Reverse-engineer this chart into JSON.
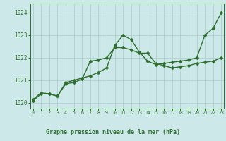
{
  "line1_x": [
    0,
    1,
    2,
    3,
    4,
    5,
    6,
    7,
    8,
    9,
    10,
    11,
    12,
    13,
    14,
    15,
    16,
    17,
    18,
    19,
    20,
    21,
    22,
    23
  ],
  "line1_y": [
    1020.1,
    1020.4,
    1020.4,
    1020.3,
    1020.85,
    1020.9,
    1021.05,
    1021.85,
    1021.9,
    1022.0,
    1022.45,
    1022.45,
    1022.35,
    1022.2,
    1022.2,
    1021.75,
    1021.65,
    1021.55,
    1021.6,
    1021.65,
    1021.75,
    1021.8,
    1021.85,
    1022.0
  ],
  "line2_x": [
    0,
    1,
    2,
    3,
    4,
    5,
    6,
    7,
    8,
    9,
    10,
    11,
    12,
    13,
    14,
    15,
    16,
    17,
    18,
    19,
    20,
    21,
    22,
    23
  ],
  "line2_y": [
    1020.15,
    1020.45,
    1020.4,
    1020.3,
    1020.9,
    1021.0,
    1021.1,
    1021.2,
    1021.35,
    1021.55,
    1022.55,
    1023.0,
    1022.8,
    1022.25,
    1021.85,
    1021.7,
    1021.75,
    1021.8,
    1021.85,
    1021.9,
    1022.0,
    1023.0,
    1023.3,
    1024.0
  ],
  "line_color": "#2d6e2d",
  "marker": "D",
  "marker_size": 2.5,
  "bg_color": "#cce8e8",
  "grid_color": "#aacccc",
  "xlabel_bg": "#99cc99",
  "xlim": [
    -0.3,
    23.3
  ],
  "ylim": [
    1019.75,
    1024.4
  ],
  "yticks": [
    1020,
    1021,
    1022,
    1023,
    1024
  ],
  "xticks": [
    0,
    1,
    2,
    3,
    4,
    5,
    6,
    7,
    8,
    9,
    10,
    11,
    12,
    13,
    14,
    15,
    16,
    17,
    18,
    19,
    20,
    21,
    22,
    23
  ],
  "xlabel": "Graphe pression niveau de la mer (hPa)",
  "xlabel_fontsize": 6.0,
  "ytick_fontsize": 5.5,
  "xtick_fontsize": 4.8,
  "line_width": 1.0
}
